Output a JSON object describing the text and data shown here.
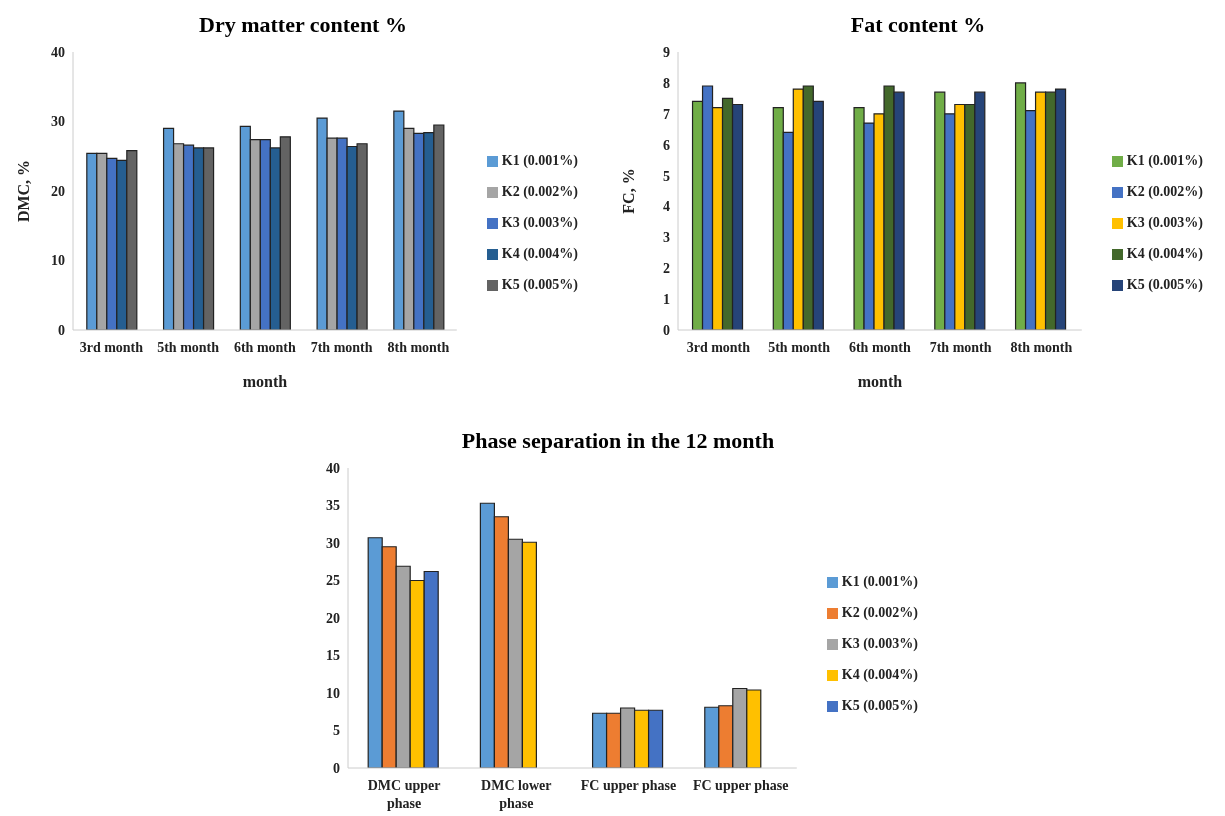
{
  "chart_data": [
    {
      "type": "bar",
      "title": "Dry matter content %",
      "xlabel": "month",
      "ylabel": "DMC, %",
      "categories": [
        "3rd month",
        "5th month",
        "6th month",
        "7th month",
        "8th month"
      ],
      "ylim": [
        0,
        40
      ],
      "yticks": [
        0,
        10,
        20,
        30,
        40
      ],
      "legend": "right",
      "series": [
        {
          "name": "K1 (0.001%)",
          "color": "#5b9bd5",
          "values": [
            25.4,
            29.0,
            29.3,
            30.5,
            31.5
          ]
        },
        {
          "name": "K2 (0.002%)",
          "color": "#a5a5a5",
          "values": [
            25.4,
            26.8,
            27.4,
            27.6,
            29.0
          ]
        },
        {
          "name": "K3 (0.003%)",
          "color": "#4472c4",
          "values": [
            24.7,
            26.6,
            27.4,
            27.6,
            28.3
          ]
        },
        {
          "name": "K4 (0.004%)",
          "color": "#255e91",
          "values": [
            24.4,
            26.2,
            26.2,
            26.4,
            28.4
          ]
        },
        {
          "name": "K5 (0.005%)",
          "color": "#636363",
          "values": [
            25.8,
            26.2,
            27.8,
            26.8,
            29.5
          ]
        }
      ]
    },
    {
      "type": "bar",
      "title": "Fat content %",
      "xlabel": "month",
      "ylabel": "FC, %",
      "categories": [
        "3rd month",
        "5th month",
        "6th month",
        "7th month",
        "8th month"
      ],
      "ylim": [
        0,
        9
      ],
      "yticks": [
        0,
        1,
        2,
        3,
        4,
        5,
        6,
        7,
        8,
        9
      ],
      "legend": "right",
      "series": [
        {
          "name": "K1 (0.001%)",
          "color": "#70ad47",
          "values": [
            7.4,
            7.2,
            7.2,
            7.7,
            8.0
          ]
        },
        {
          "name": "K2 (0.002%)",
          "color": "#4472c4",
          "values": [
            7.9,
            6.4,
            6.7,
            7.0,
            7.1
          ]
        },
        {
          "name": "K3 (0.003%)",
          "color": "#ffc000",
          "values": [
            7.2,
            7.8,
            7.0,
            7.3,
            7.7
          ]
        },
        {
          "name": "K4 (0.004%)",
          "color": "#43682b",
          "values": [
            7.5,
            7.9,
            7.9,
            7.3,
            7.7
          ]
        },
        {
          "name": "K5 (0.005%)",
          "color": "#264478",
          "values": [
            7.3,
            7.4,
            7.7,
            7.7,
            7.8
          ]
        }
      ]
    },
    {
      "type": "bar",
      "title": "Phase separation in the 12 month",
      "categories": [
        "DMC upper phase",
        "DMC lower phase",
        "FC upper phase",
        "FC upper phase"
      ],
      "ylim": [
        0,
        40
      ],
      "yticks": [
        0,
        5,
        10,
        15,
        20,
        25,
        30,
        35,
        40
      ],
      "legend": "right",
      "series": [
        {
          "name": "K1 (0.001%)",
          "color": "#5b9bd5",
          "values": [
            30.7,
            35.3,
            7.3,
            8.1
          ]
        },
        {
          "name": "K2 (0.002%)",
          "color": "#ed7d31",
          "values": [
            29.5,
            33.5,
            7.3,
            8.3
          ]
        },
        {
          "name": "K3 (0.003%)",
          "color": "#a5a5a5",
          "values": [
            26.9,
            30.5,
            8.0,
            10.6
          ]
        },
        {
          "name": "K4 (0.004%)",
          "color": "#ffc000",
          "values": [
            25.0,
            30.1,
            7.7,
            10.4
          ]
        },
        {
          "name": "K5 (0.005%)",
          "color": "#4472c4",
          "values": [
            26.2,
            null,
            7.7,
            null
          ]
        }
      ]
    }
  ]
}
